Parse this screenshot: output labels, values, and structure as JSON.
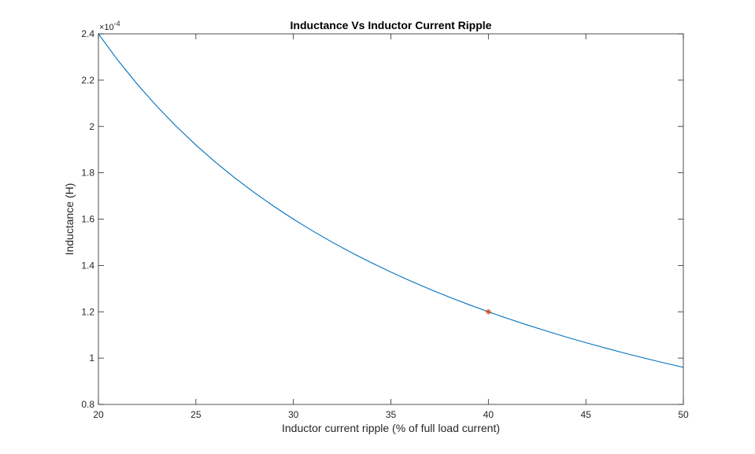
{
  "chart_data": {
    "type": "line",
    "title": "Inductance Vs Inductor Current Ripple",
    "xlabel": "Inductor current ripple (% of full load current)",
    "ylabel": "Inductance (H)",
    "xlim": [
      20,
      50
    ],
    "ylim": [
      0.8,
      2.4
    ],
    "y_exponent_label": "×10",
    "y_exponent_power": "-4",
    "x_ticks": [
      "20",
      "25",
      "30",
      "35",
      "40",
      "45",
      "50"
    ],
    "y_ticks": [
      "0.8",
      "1",
      "1.2",
      "1.4",
      "1.6",
      "1.8",
      "2",
      "2.2",
      "2.4"
    ],
    "grid": false,
    "series": [
      {
        "color": "#0072BD",
        "x": [
          20,
          21,
          22,
          23,
          24,
          25,
          26,
          27,
          28,
          29,
          30,
          31,
          32,
          33,
          34,
          35,
          36,
          37,
          38,
          39,
          40,
          41,
          42,
          43,
          44,
          45,
          46,
          47,
          48,
          49,
          50
        ],
        "y": [
          2.4,
          2.2857,
          2.1818,
          2.087,
          2.0,
          1.92,
          1.8462,
          1.7778,
          1.7143,
          1.6552,
          1.6,
          1.5484,
          1.5,
          1.4545,
          1.4118,
          1.3714,
          1.3333,
          1.2973,
          1.2632,
          1.2308,
          1.2,
          1.1707,
          1.1429,
          1.1163,
          1.0909,
          1.0667,
          1.0435,
          1.0213,
          1.0,
          0.9796,
          0.96
        ]
      }
    ],
    "marker": {
      "x": 40,
      "y": 1.2,
      "color": "#D95319",
      "symbol": "asterisk"
    }
  }
}
